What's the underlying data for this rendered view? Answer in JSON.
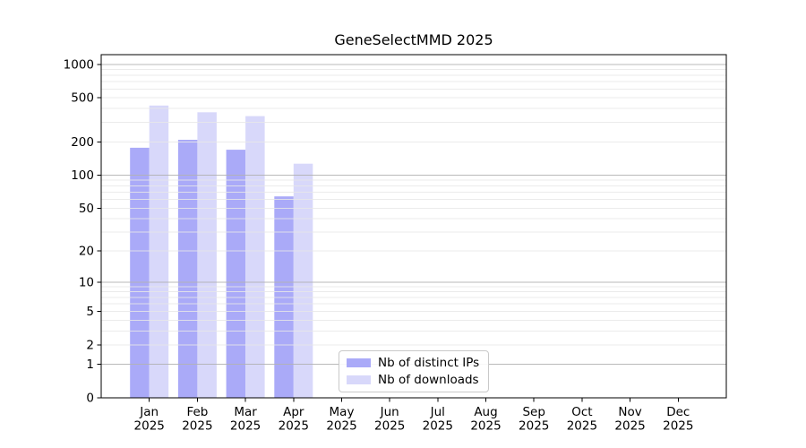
{
  "chart_data": {
    "type": "bar",
    "title": "GeneSelectMMD 2025",
    "categories": [
      "Jan",
      "Feb",
      "Mar",
      "Apr",
      "May",
      "Jun",
      "Jul",
      "Aug",
      "Sep",
      "Oct",
      "Nov",
      "Dec"
    ],
    "x_tick_second_line": "2025",
    "series": [
      {
        "name": "Nb of distinct IPs",
        "color": "#aaaaf8",
        "values": [
          177,
          209,
          170,
          64,
          null,
          null,
          null,
          null,
          null,
          null,
          null,
          null
        ]
      },
      {
        "name": "Nb of downloads",
        "color": "#d8d8fa",
        "values": [
          426,
          371,
          342,
          127,
          null,
          null,
          null,
          null,
          null,
          null,
          null,
          null
        ]
      }
    ],
    "y_ticks": [
      1000,
      500,
      200,
      100,
      50,
      20,
      10,
      5,
      2,
      1,
      0
    ],
    "y_scale": "log10(1+y)",
    "ylim": [
      0,
      1200
    ],
    "grid": {
      "orientation": "horizontal",
      "major_at": [
        1,
        10,
        100,
        1000
      ],
      "major_color": "#b1b1b1",
      "minor_color": "#e8e8e8"
    },
    "legend_position": "lower-center-left inside plot"
  }
}
